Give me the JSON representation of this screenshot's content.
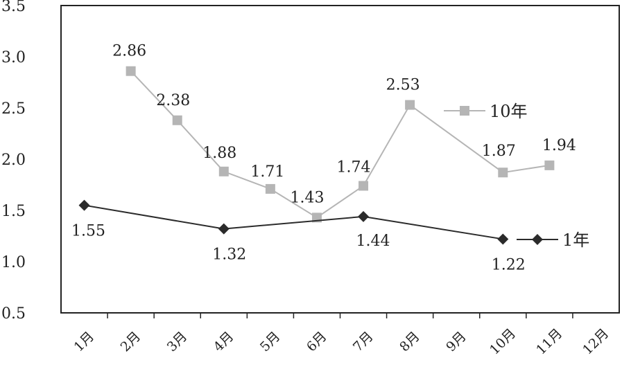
{
  "chart_data": {
    "type": "line",
    "categories": [
      "1月",
      "2月",
      "3月",
      "4月",
      "5月",
      "6月",
      "7月",
      "8月",
      "9月",
      "10月",
      "11月",
      "12月"
    ],
    "ylim": [
      0.5,
      3.5
    ],
    "yticks": [
      "0.5",
      "1.0",
      "1.5",
      "2.0",
      "2.5",
      "3.0",
      "3.5"
    ],
    "grid": false,
    "legend_position": "right",
    "series": [
      {
        "name": "10年",
        "color": "#b5b5b5",
        "marker": "square",
        "points": [
          {
            "x": 1.5,
            "y": 2.86,
            "label": "2.86"
          },
          {
            "x": 2.5,
            "y": 2.38,
            "label": "2.38"
          },
          {
            "x": 3.5,
            "y": 1.88,
            "label": "1.88"
          },
          {
            "x": 4.5,
            "y": 1.71,
            "label": "1.71"
          },
          {
            "x": 5.5,
            "y": 1.43,
            "label": "1.43"
          },
          {
            "x": 6.5,
            "y": 1.74,
            "label": "1.74"
          },
          {
            "x": 7.5,
            "y": 2.53,
            "label": "2.53"
          },
          {
            "x": 9.5,
            "y": 1.87,
            "label": "1.87"
          },
          {
            "x": 10.5,
            "y": 1.94,
            "label": "1.94"
          }
        ]
      },
      {
        "name": "1年",
        "color": "#2b2b2b",
        "marker": "diamond",
        "points": [
          {
            "x": 0.5,
            "y": 1.55,
            "label": "1.55"
          },
          {
            "x": 3.5,
            "y": 1.32,
            "label": "1.32"
          },
          {
            "x": 6.5,
            "y": 1.44,
            "label": "1.44"
          },
          {
            "x": 9.5,
            "y": 1.22,
            "label": "1.22"
          }
        ]
      }
    ]
  }
}
